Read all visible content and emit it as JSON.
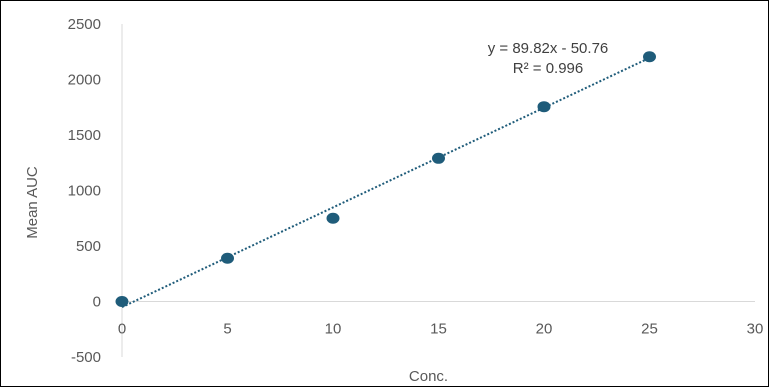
{
  "chart_data": {
    "type": "scatter",
    "xlabel": "Conc.",
    "ylabel": "Mean AUC",
    "xlim": [
      0,
      30
    ],
    "ylim": [
      -500,
      2500
    ],
    "x_ticks": [
      0,
      5,
      10,
      15,
      20,
      25,
      30
    ],
    "y_ticks": [
      -500,
      0,
      500,
      1000,
      1500,
      2000,
      2500
    ],
    "x_tick_labels": [
      "0",
      "5",
      "10",
      "15",
      "20",
      "25",
      "30"
    ],
    "y_tick_labels": [
      "-500",
      "0",
      "500",
      "1000",
      "1500",
      "2000",
      "2500"
    ],
    "grid": false,
    "series": [
      {
        "x": [
          0,
          5,
          10,
          15,
          20,
          25
        ],
        "y": [
          0,
          390,
          750,
          1290,
          1755,
          2205
        ]
      }
    ],
    "trendline": {
      "type": "linear",
      "slope": 89.82,
      "intercept": -50.76,
      "x_range": [
        0,
        25
      ],
      "equation": "y = 89.82x - 50.76",
      "r_squared": "R² = 0.996"
    },
    "colors": {
      "marker": "#1f5c7a",
      "trendline": "#1f5c7a",
      "axis": "#d9d9d9"
    }
  }
}
